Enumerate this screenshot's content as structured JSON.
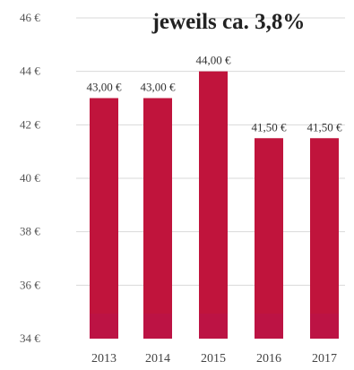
{
  "chart_data": {
    "type": "bar",
    "title": "jeweils ca. 3,8%",
    "categories": [
      "2013",
      "2014",
      "2015",
      "2016",
      "2017"
    ],
    "values": [
      43.0,
      43.0,
      44.0,
      41.5,
      41.5
    ],
    "data_labels": [
      "43,00 €",
      "43,00 €",
      "44,00 €",
      "41,50 €",
      "41,50 €"
    ],
    "ylim": [
      34,
      46
    ],
    "yticks": [
      34,
      36,
      38,
      40,
      42,
      44,
      46
    ],
    "ytick_labels": [
      "34 €",
      "36 €",
      "38 €",
      "40 €",
      "42 €",
      "44 €",
      "46 €"
    ],
    "grid": true,
    "bar_color": "#c0143c",
    "bar_base_color": "#b8134a",
    "grid_color": "#d9d9d9"
  }
}
